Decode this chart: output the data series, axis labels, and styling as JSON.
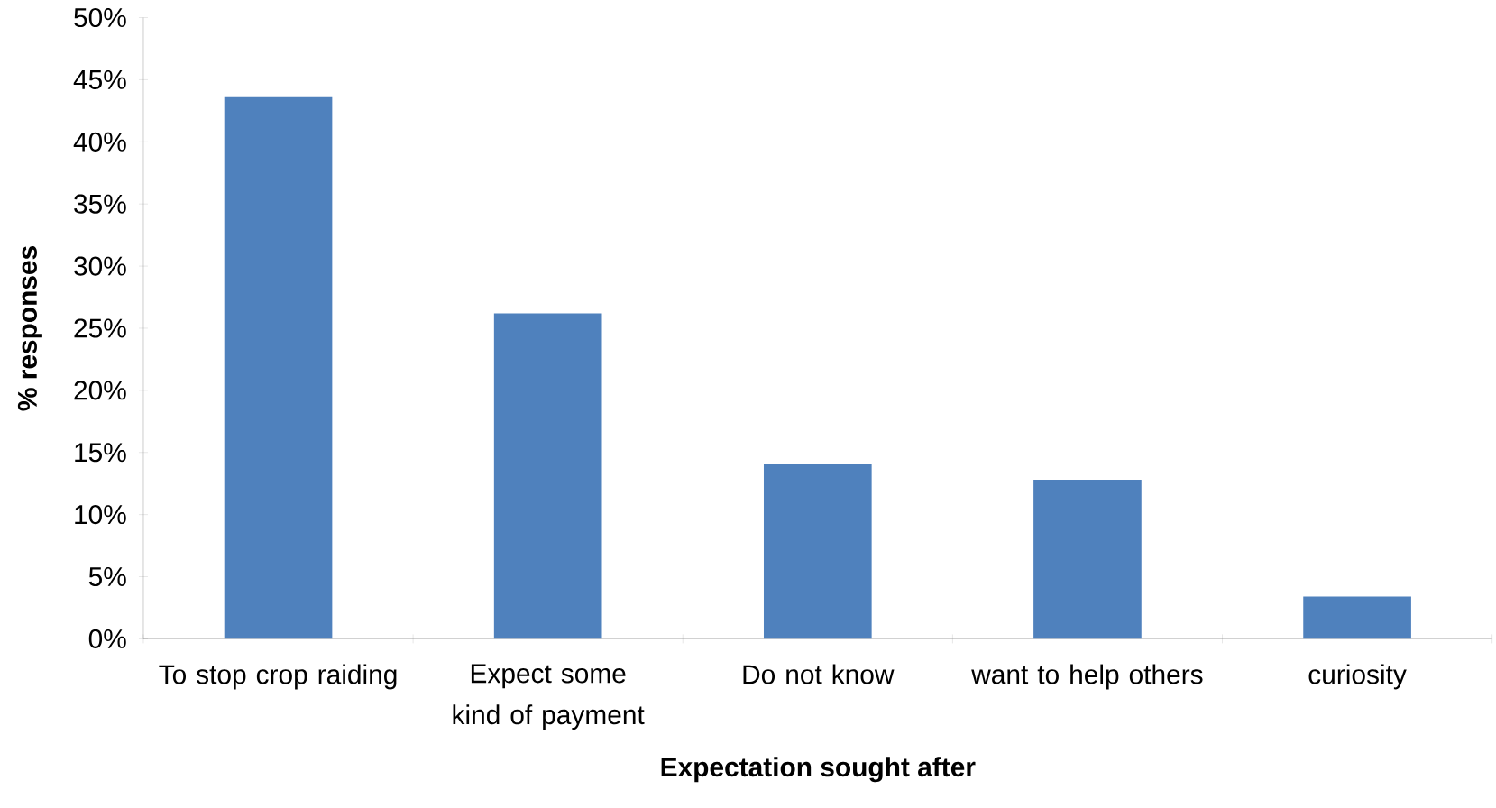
{
  "chart_data": {
    "type": "bar",
    "xlabel": "Expectation sought after",
    "ylabel": "% responses",
    "categories": [
      "To stop crop raiding",
      "Expect some kind of payment",
      "Do not know",
      "want to help others",
      "curiosity"
    ],
    "values": [
      43.6,
      26.2,
      14.1,
      12.8,
      3.4
    ],
    "color": "#4f81bd",
    "ylim": [
      0,
      50
    ],
    "yticks": [
      {
        "value": 0,
        "label": "0%"
      },
      {
        "value": 5,
        "label": "5%"
      },
      {
        "value": 10,
        "label": "10%"
      },
      {
        "value": 15,
        "label": "15%"
      },
      {
        "value": 20,
        "label": "20%"
      },
      {
        "value": 25,
        "label": "25%"
      },
      {
        "value": 30,
        "label": "30%"
      },
      {
        "value": 35,
        "label": "35%"
      },
      {
        "value": 40,
        "label": "40%"
      },
      {
        "value": 45,
        "label": "45%"
      },
      {
        "value": 50,
        "label": "50%"
      }
    ],
    "grid": false
  }
}
